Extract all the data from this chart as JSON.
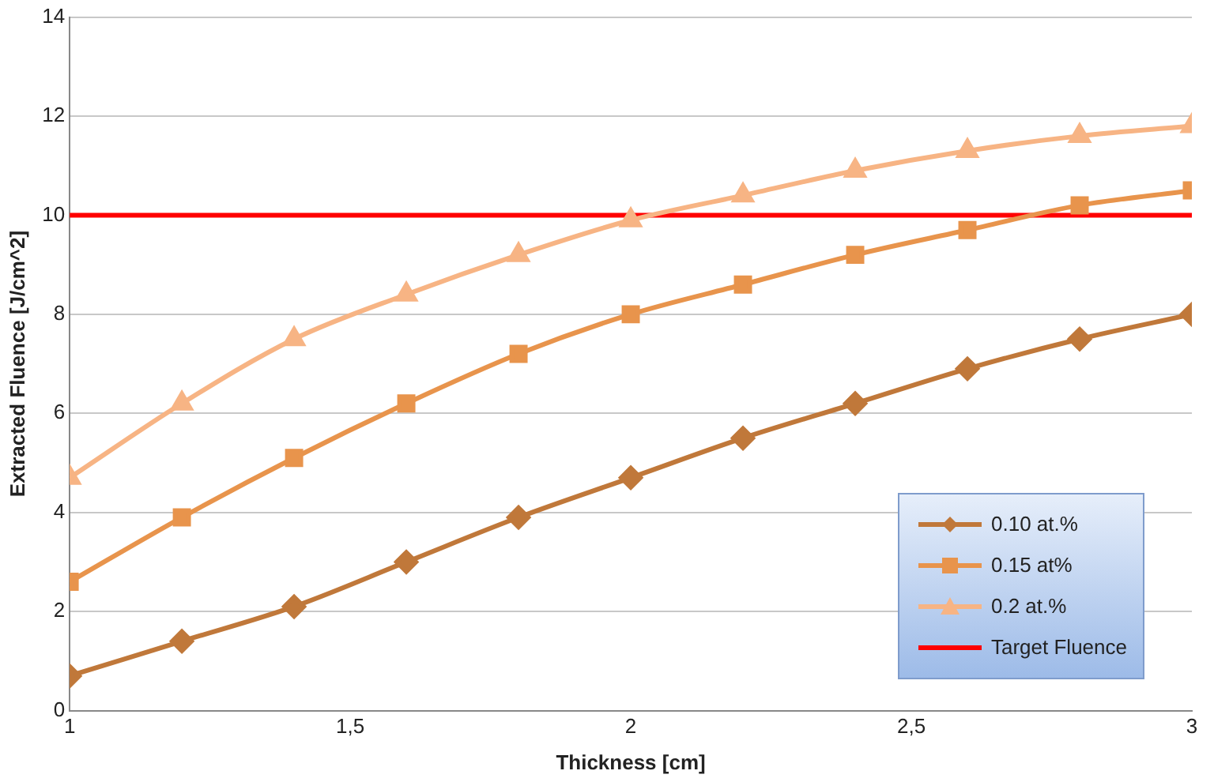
{
  "chart_data": {
    "type": "line",
    "xlabel": "Thickness [cm]",
    "ylabel": "Extracted Fluence [J/cm^2]",
    "x": [
      1,
      1.2,
      1.4,
      1.6,
      1.8,
      2,
      2.2,
      2.4,
      2.6,
      2.8,
      3
    ],
    "series": [
      {
        "name": "0.10 at.%",
        "color": "#c0783a",
        "marker": "diamond",
        "values": [
          0.7,
          1.4,
          2.1,
          3.0,
          3.9,
          4.7,
          5.5,
          6.2,
          6.9,
          7.5,
          8.0
        ]
      },
      {
        "name": "0.15 at%",
        "color": "#e8944c",
        "marker": "square",
        "values": [
          2.6,
          3.9,
          5.1,
          6.2,
          7.2,
          8.0,
          8.6,
          9.2,
          9.7,
          10.2,
          10.5
        ]
      },
      {
        "name": "0.2 at.%",
        "color": "#f7b484",
        "marker": "triangle",
        "values": [
          4.7,
          6.2,
          7.5,
          8.4,
          9.2,
          9.9,
          10.4,
          10.9,
          11.3,
          11.6,
          11.8
        ]
      }
    ],
    "ref_lines": [
      {
        "axis": "y",
        "value": 10,
        "label": "Target Fluence",
        "color": "#ff0000"
      }
    ],
    "xlim": [
      1,
      3
    ],
    "xticks": [
      1,
      {
        "value": 1.5,
        "label": "1,5"
      },
      2,
      {
        "value": 2.5,
        "label": "2,5"
      },
      3
    ],
    "ylim": [
      0,
      14
    ],
    "yticks": [
      0,
      2,
      4,
      6,
      8,
      10,
      12,
      14
    ],
    "grid": "y",
    "legend": "right"
  }
}
